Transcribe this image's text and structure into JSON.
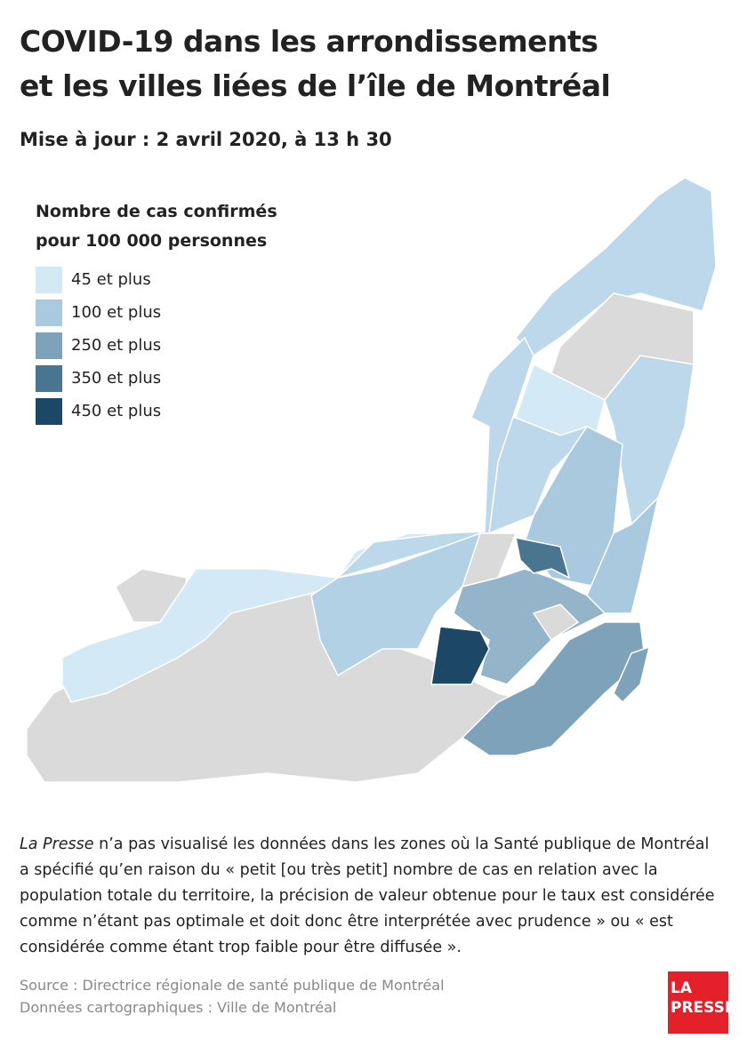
{
  "header": {
    "title_lines": [
      "COVID-19 dans les arrondissements",
      "et les villes liées de l’île de Montréal"
    ],
    "subtitle": "Mise à jour : 2 avril 2020, à 13 h 30"
  },
  "legend": {
    "title_lines": [
      "Nombre de cas confirmés",
      "pour 100 000 personnes"
    ],
    "items": [
      {
        "label": "45 et plus",
        "color": "#d3eaf6"
      },
      {
        "label": "100 et plus",
        "color": "#a8c9de"
      },
      {
        "label": "250 et plus",
        "color": "#7ea2ba"
      },
      {
        "label": "350 et plus",
        "color": "#4a7590"
      },
      {
        "label": "450 et plus",
        "color": "#1d4766"
      }
    ]
  },
  "note": {
    "emphasis": "La Presse",
    "text": " n’a pas visualisé les données dans les zones où la Santé publique de Montréal a spécifié qu’en raison du « petit [ou très petit] nombre de cas en relation avec la population totale du territoire, la précision de valeur obtenue pour le taux est considérée comme n’étant pas optimale et doit donc être interprétée avec prudence » ou « est considérée comme étant trop faible pour être diffusée »."
  },
  "source_lines": [
    "Source : Directrice régionale de santé publique de Montréal",
    "Données cartographiques : Ville de Montréal"
  ],
  "logo_lines": [
    "LA",
    "PRESSE"
  ]
}
